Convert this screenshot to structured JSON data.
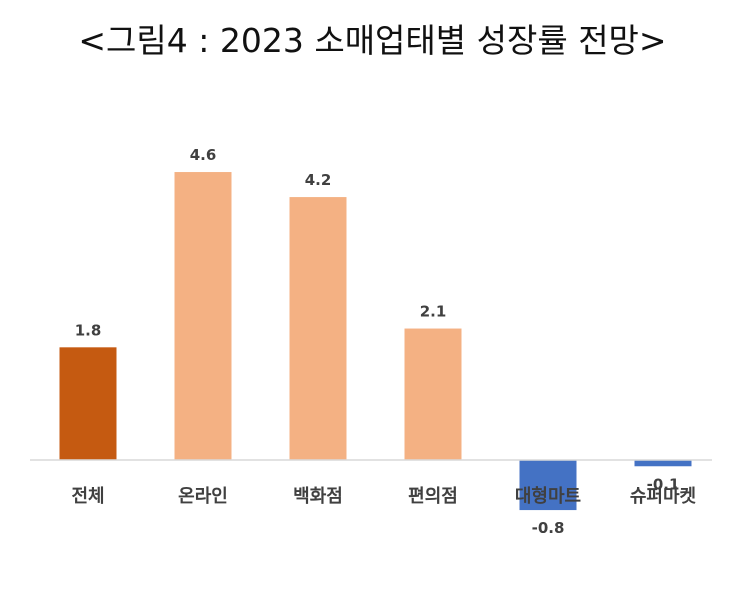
{
  "title": "<그림4 : 2023 소매업태별 성장률 전망>",
  "chart_data": {
    "type": "bar",
    "title": "<그림4 : 2023 소매업태별 성장률 전망>",
    "categories": [
      "전체",
      "온라인",
      "백화점",
      "편의점",
      "대형마트",
      "슈퍼마켓"
    ],
    "values": [
      1.8,
      4.6,
      4.2,
      2.1,
      -0.8,
      -0.1
    ],
    "data_labels": [
      "1.8",
      "4.6",
      "4.2",
      "2.1",
      "-0.8",
      "-0.1"
    ],
    "colors": [
      "#C55A11",
      "#F4B183",
      "#F4B183",
      "#F4B183",
      "#4472C4",
      "#4472C4"
    ],
    "xlabel": "",
    "ylabel": "",
    "ylim": [
      -0.8,
      4.6
    ],
    "grid": false,
    "legend": "none"
  }
}
